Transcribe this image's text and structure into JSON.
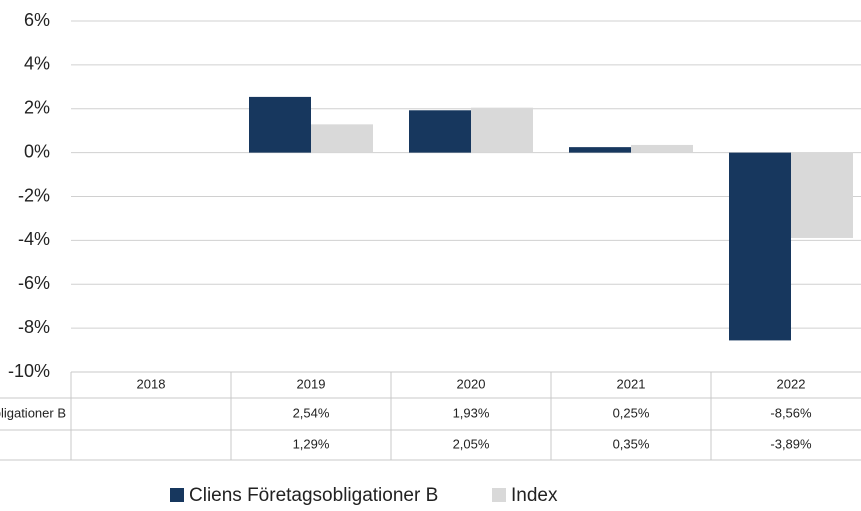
{
  "chart_data": {
    "type": "bar",
    "categories": [
      "2018",
      "2019",
      "2020",
      "2021",
      "2022"
    ],
    "series": [
      {
        "name": "Cliens Företagsobligationer B",
        "color": "#17375e",
        "values": [
          null,
          2.54,
          1.93,
          0.25,
          -8.56
        ],
        "value_labels": [
          null,
          "2,54%",
          "1,93%",
          "0,25%",
          "-8,56%"
        ]
      },
      {
        "name": "Index",
        "color": "#d9d9d9",
        "values": [
          null,
          1.29,
          2.05,
          0.35,
          -3.89
        ],
        "value_labels": [
          null,
          "1,29%",
          "2,05%",
          "0,35%",
          "-3,89%"
        ]
      }
    ],
    "ylim": [
      -10,
      6
    ],
    "yticks": [
      {
        "value": -10,
        "label": "-10%"
      },
      {
        "value": -8,
        "label": "-8%"
      },
      {
        "value": -6,
        "label": "-6%"
      },
      {
        "value": -4,
        "label": "-4%"
      },
      {
        "value": -2,
        "label": "-2%"
      },
      {
        "value": 0,
        "label": "0%"
      },
      {
        "value": 2,
        "label": "2%"
      },
      {
        "value": 4,
        "label": "4%"
      },
      {
        "value": 6,
        "label": "6%"
      }
    ],
    "grid": true
  }
}
